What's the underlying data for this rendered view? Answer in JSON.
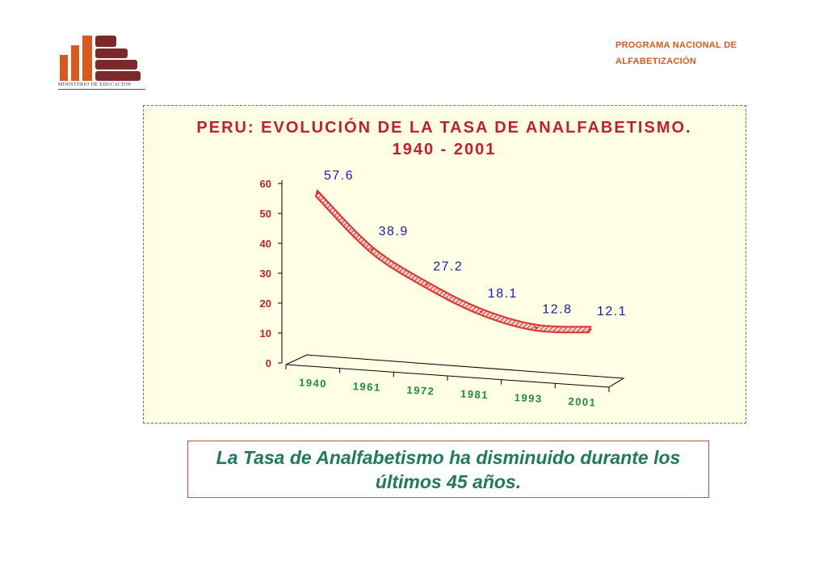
{
  "header": {
    "logo_caption": "MINISTERIO DE EDUCACION",
    "program_line1": "PROGRAMA NACIONAL DE",
    "program_line2": "ALFABETIZACIÓN"
  },
  "colors": {
    "brand_orange": "#d75a1e",
    "brand_brown": "#7a2a28",
    "title": "#c21f2a",
    "ribbon": "#e03030",
    "data_label": "#1a1aa8",
    "x_tick": "#1f8a3a",
    "caption": "#1e7a58",
    "panel_bg": "#ffffe6"
  },
  "chart_data": {
    "type": "line",
    "title": "PERU: EVOLUCIÓN DE LA TASA DE ANALFABETISMO.",
    "subtitle": "1940 - 2001",
    "categories": [
      "1940",
      "1961",
      "1972",
      "1981",
      "1993",
      "2001"
    ],
    "values": [
      57.6,
      38.9,
      27.2,
      18.1,
      12.8,
      12.1
    ],
    "data_labels": [
      "57.6",
      "38.9",
      "27.2",
      "18.1",
      "12.8",
      "12.1"
    ],
    "y_ticks": [
      "0",
      "10",
      "20",
      "30",
      "40",
      "50",
      "60"
    ],
    "ylim": [
      0,
      60
    ],
    "xlabel": "",
    "ylabel": "",
    "grid": false,
    "legend": "none"
  },
  "caption": {
    "text": "La Tasa de Analfabetismo ha disminuido durante los últimos 45 años."
  }
}
